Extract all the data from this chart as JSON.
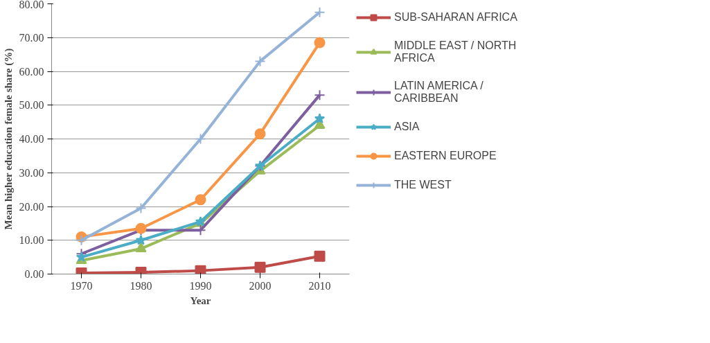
{
  "chart_data": {
    "type": "line",
    "xlabel": "Year",
    "ylabel": "Mean higher education female share (%)",
    "categories": [
      "1970",
      "1980",
      "1990",
      "2000",
      "2010"
    ],
    "ylim": [
      0,
      80
    ],
    "yticks": [
      {
        "value": 0,
        "label": "0.00"
      },
      {
        "value": 10,
        "label": "10.00"
      },
      {
        "value": 20,
        "label": "20.00"
      },
      {
        "value": 30,
        "label": "30.00"
      },
      {
        "value": 40,
        "label": "40.00"
      },
      {
        "value": 50,
        "label": "50.00"
      },
      {
        "value": 60,
        "label": "60.00"
      },
      {
        "value": 70,
        "label": "70.00"
      },
      {
        "value": 80,
        "label": "80.00"
      }
    ],
    "grid": "y",
    "legend": "right",
    "series": [
      {
        "name": "SUB-SAHARAN AFRICA",
        "color": "#be4b48",
        "marker": "square",
        "values": [
          0.3,
          0.5,
          1.0,
          2.0,
          5.3
        ]
      },
      {
        "name": "MIDDLE EAST / NORTH AFRICA",
        "color": "#9bbb59",
        "marker": "triangle",
        "values": [
          4.0,
          7.5,
          15.0,
          30.5,
          44.0
        ]
      },
      {
        "name": "LATIN AMERICA / CARIBBEAN",
        "color": "#7d5fa0",
        "marker": "cross",
        "values": [
          6.0,
          13.0,
          13.0,
          32.0,
          53.0
        ]
      },
      {
        "name": "ASIA",
        "color": "#4bacc6",
        "marker": "star",
        "values": [
          5.0,
          10.0,
          15.5,
          32.0,
          46.0
        ]
      },
      {
        "name": "EASTERN EUROPE",
        "color": "#f79646",
        "marker": "circle",
        "values": [
          11.0,
          13.5,
          22.0,
          41.5,
          68.5
        ]
      },
      {
        "name": "THE WEST",
        "color": "#95b3d7",
        "marker": "cross",
        "values": [
          10.0,
          19.5,
          40.0,
          63.0,
          77.5
        ]
      }
    ]
  }
}
